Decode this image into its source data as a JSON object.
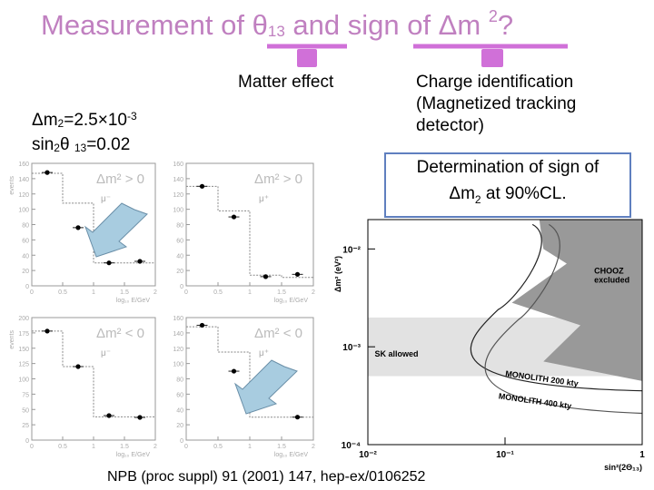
{
  "slide": {
    "title": {
      "text_a": "Measurement of θ",
      "sub": "13",
      "text_b": " and sign of Δm ",
      "sup": "2",
      "text_c": "?"
    },
    "labels": {
      "matter_effect": "Matter effect",
      "charge_id": [
        "Charge identification",
        "(Magnetized tracking",
        "detector)"
      ]
    },
    "params": {
      "dm2_a": "Δm",
      "dm2_sub": "2",
      "dm2_b": "=2.5×10",
      "dm2_sup": "-3",
      "sin_a": "sin",
      "sin_sub": "2",
      "sin_b": "θ ",
      "sin_sub2": "13",
      "sin_c": "=0.02"
    },
    "result": {
      "line1": "Determination of sign of",
      "line2_a": "Δm",
      "line2_sub": "2",
      "line2_b": " at 90%CL."
    },
    "citation": "NPB (proc suppl) 91 (2001) 147,  hep-ex/0106252",
    "colors": {
      "title": "#c080c0",
      "bracket": "#d070d8",
      "box_border": "#5f7fbf",
      "arrow": "#a8cce0"
    }
  },
  "chart_data": [
    {
      "type": "scatter",
      "panel": "top-left",
      "label": "Δm² > 0",
      "particle": "μ⁻",
      "xlabel": "log₁₀ E/GeV",
      "ylabel": "events",
      "xlim": [
        0,
        2
      ],
      "ylim": [
        0,
        160
      ],
      "xticks": [
        "0",
        "0.5",
        "1",
        "1.5",
        "2"
      ],
      "yticks": [
        "0",
        "20",
        "40",
        "60",
        "80",
        "100",
        "120",
        "140",
        "160"
      ],
      "x": [
        0.25,
        0.75,
        1.25,
        1.75
      ],
      "y": [
        148,
        76,
        30,
        32
      ],
      "hist_y": [
        147,
        108,
        30,
        30
      ]
    },
    {
      "type": "scatter",
      "panel": "top-right",
      "label": "Δm² > 0",
      "particle": "μ⁺",
      "xlabel": "log₁₀ E/GeV",
      "ylabel": "",
      "xlim": [
        0,
        2
      ],
      "ylim": [
        0,
        160
      ],
      "xticks": [
        "0",
        "0.5",
        "1",
        "1.5",
        "2"
      ],
      "yticks": [
        "0",
        "20",
        "40",
        "60",
        "80",
        "100",
        "120",
        "140",
        "160"
      ],
      "x": [
        0.25,
        0.75,
        1.25,
        1.75
      ],
      "y": [
        130,
        90,
        12,
        15
      ],
      "hist_y": [
        130,
        98,
        14,
        11
      ]
    },
    {
      "type": "scatter",
      "panel": "bottom-left",
      "label": "Δm² < 0",
      "particle": "μ⁻",
      "xlabel": "log₁₀ E/GeV",
      "ylabel": "events",
      "xlim": [
        0,
        2
      ],
      "ylim": [
        0,
        200
      ],
      "xticks": [
        "0",
        "0.5",
        "1",
        "1.5",
        "2"
      ],
      "yticks": [
        "0",
        "25",
        "50",
        "75",
        "100",
        "125",
        "150",
        "175",
        "200"
      ],
      "x": [
        0.25,
        0.75,
        1.25,
        1.75
      ],
      "y": [
        178,
        120,
        40,
        37
      ],
      "hist_y": [
        178,
        120,
        38,
        38
      ]
    },
    {
      "type": "scatter",
      "panel": "bottom-right",
      "label": "Δm² < 0",
      "particle": "μ⁺",
      "xlabel": "log₁₀ E/GeV",
      "ylabel": "",
      "xlim": [
        0,
        2
      ],
      "ylim": [
        0,
        160
      ],
      "xticks": [
        "0",
        "0.5",
        "1",
        "1.5",
        "2"
      ],
      "yticks": [
        "0",
        "20",
        "40",
        "60",
        "80",
        "100",
        "120",
        "140",
        "160"
      ],
      "x": [
        0.25,
        0.75,
        1.25,
        1.75
      ],
      "y": [
        150,
        90,
        46,
        30
      ],
      "hist_y": [
        148,
        115,
        30,
        30
      ]
    },
    {
      "type": "area",
      "panel": "sensitivity",
      "ylabel": "Δm² (eV²)",
      "xlabel": "sin²(2Θ₁₃)",
      "xticks": [
        "10⁻²",
        "10⁻¹",
        "1"
      ],
      "yticks": [
        "10⁻⁴",
        "10⁻³",
        "10⁻²"
      ],
      "annotations": [
        "CHOOZ excluded",
        "SK allowed",
        "MONOLITH 200 kty",
        "MONOLITH 400 kty"
      ]
    }
  ]
}
